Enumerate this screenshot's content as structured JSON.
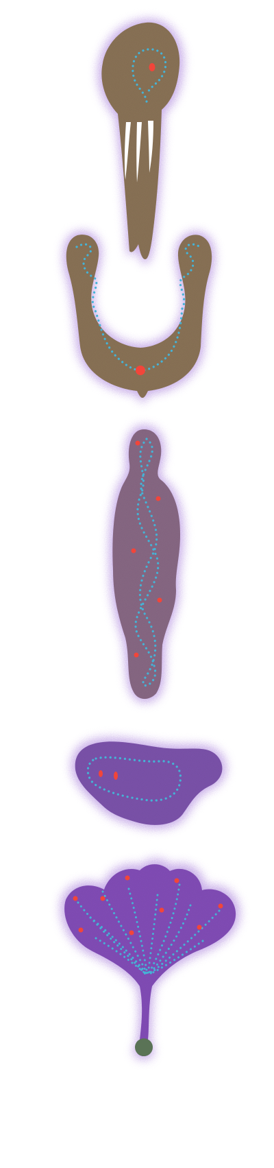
{
  "image": {
    "description_free": true
  },
  "colors": {
    "background": "#ffffff",
    "halo": "#9b6cd6",
    "body_brown": "#8c7458",
    "body_brown_purple": "#8a6a86",
    "body_purple": "#7e55ad",
    "body_violet": "#8450ba",
    "dot_cyan": "#45b3d6",
    "spot_red": "#f2453a",
    "stem_knob": "#5a7356"
  },
  "figures": [
    {
      "name": "figure-1-trident",
      "fill_key": "body_brown"
    },
    {
      "name": "figure-2-u-shape",
      "fill_key": "body_brown"
    },
    {
      "name": "figure-3-vertical",
      "fill_key": "body_brown_purple"
    },
    {
      "name": "figure-4-pebble",
      "fill_key": "body_purple"
    },
    {
      "name": "figure-5-ginkgo-leaf",
      "fill_key": "body_violet"
    }
  ]
}
